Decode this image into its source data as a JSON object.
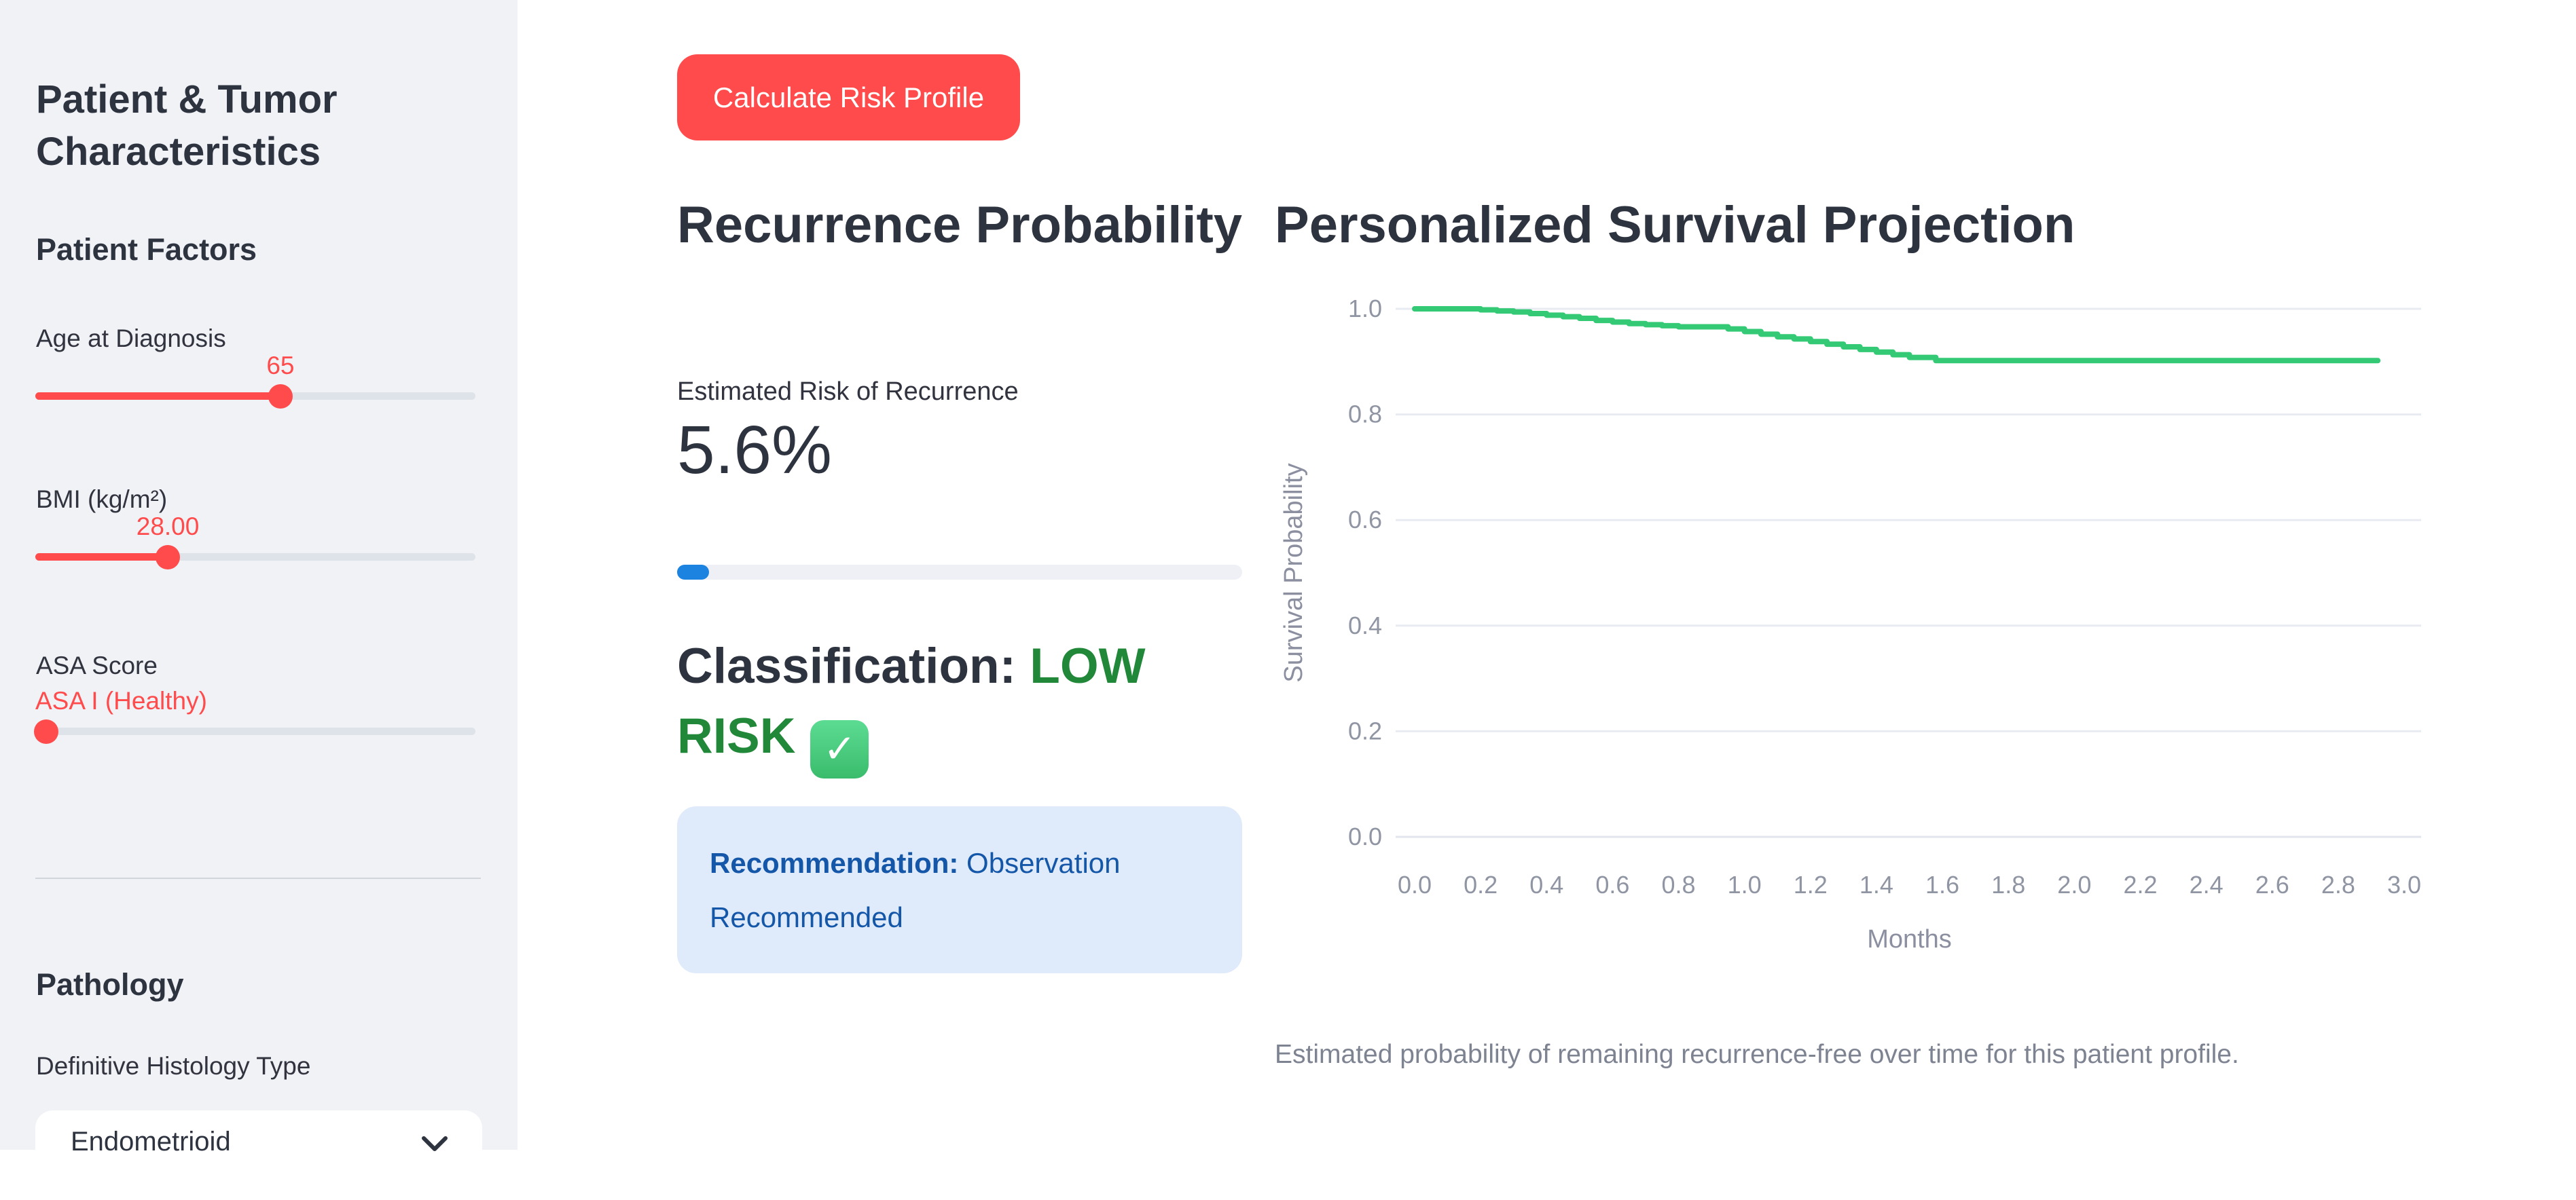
{
  "sidebar": {
    "title": "Patient & Tumor Characteristics",
    "patient_factors_heading": "Patient Factors",
    "sliders": {
      "age": {
        "label": "Age at Diagnosis",
        "value": "65",
        "fill_pct": 55.7,
        "value_align": "center"
      },
      "bmi": {
        "label": "BMI (kg/m²)",
        "value": "28.00",
        "fill_pct": 30.1,
        "value_align": "center"
      },
      "asa": {
        "label": "ASA Score",
        "value": "ASA I (Healthy)",
        "fill_pct": 2.5,
        "value_align": "left"
      }
    },
    "pathology_heading": "Pathology",
    "histology": {
      "label": "Definitive Histology Type",
      "selected": "Endometrioid"
    }
  },
  "main": {
    "calculate_button_label": "Calculate Risk Profile",
    "recurrence": {
      "heading": "Recurrence Probability",
      "metric_label": "Estimated Risk of Recurrence",
      "metric_value": "5.6%",
      "progress_pct": 5.6,
      "classification_prefix": "Classification: ",
      "classification_value": "LOW RISK",
      "check_icon_glyph": "✓",
      "recommendation_label": "Recommendation:",
      "recommendation_text": " Observation Recommended"
    },
    "survival": {
      "heading": "Personalized Survival Projection",
      "caption": "Estimated probability of remaining recurrence-free over time for this patient profile."
    }
  },
  "colors": {
    "accent_red": "#ff4b4b",
    "progress_blue": "#1c83e1",
    "classification_green": "#218739",
    "curve_green": "#34c974",
    "info_bg": "#dfeafb",
    "info_text": "#1457a8",
    "sidebar_bg": "#f0f2f6",
    "grid_line": "#e9ebf2",
    "tick_text": "#9095a3"
  },
  "chart_data": {
    "type": "line",
    "step": true,
    "title": "Personalized Survival Projection",
    "xlabel": "Months",
    "ylabel": "Survival Probability",
    "x": [
      0.0,
      0.2,
      0.25,
      0.3,
      0.35,
      0.4,
      0.45,
      0.5,
      0.55,
      0.6,
      0.65,
      0.7,
      0.75,
      0.8,
      0.95,
      1.0,
      1.05,
      1.1,
      1.15,
      1.2,
      1.25,
      1.3,
      1.35,
      1.4,
      1.45,
      1.5,
      1.58,
      2.92
    ],
    "y": [
      1.0,
      0.998,
      0.996,
      0.994,
      0.991,
      0.988,
      0.985,
      0.982,
      0.978,
      0.975,
      0.972,
      0.97,
      0.968,
      0.966,
      0.962,
      0.957,
      0.952,
      0.947,
      0.943,
      0.938,
      0.933,
      0.928,
      0.923,
      0.918,
      0.913,
      0.908,
      0.902,
      0.902
    ],
    "xticks": [
      "0.0",
      "0.2",
      "0.4",
      "0.6",
      "0.8",
      "1.0",
      "1.2",
      "1.4",
      "1.6",
      "1.8",
      "2.0",
      "2.2",
      "2.4",
      "2.6",
      "2.8",
      "3.0"
    ],
    "yticks": [
      "1.0",
      "0.8",
      "0.6",
      "0.4",
      "0.2",
      "0.0"
    ],
    "xlim": [
      -0.06,
      3.05
    ],
    "ylim": [
      0.0,
      1.05
    ],
    "grid": true,
    "legend": false,
    "line_color": "#34c974"
  }
}
